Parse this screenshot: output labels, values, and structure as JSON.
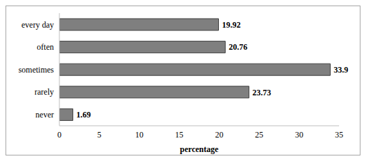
{
  "chart_data": {
    "type": "bar",
    "orientation": "horizontal",
    "categories": [
      "every day",
      "often",
      "sometimes",
      "rarely",
      "never"
    ],
    "values": [
      19.92,
      20.76,
      33.9,
      23.73,
      1.69
    ],
    "color": "#7f7f7f",
    "xlim": [
      0,
      35
    ],
    "xticks": [
      0,
      5,
      10,
      15,
      20,
      25,
      30,
      35
    ],
    "x_label": "percentage",
    "data_labels": true,
    "grid": false
  }
}
